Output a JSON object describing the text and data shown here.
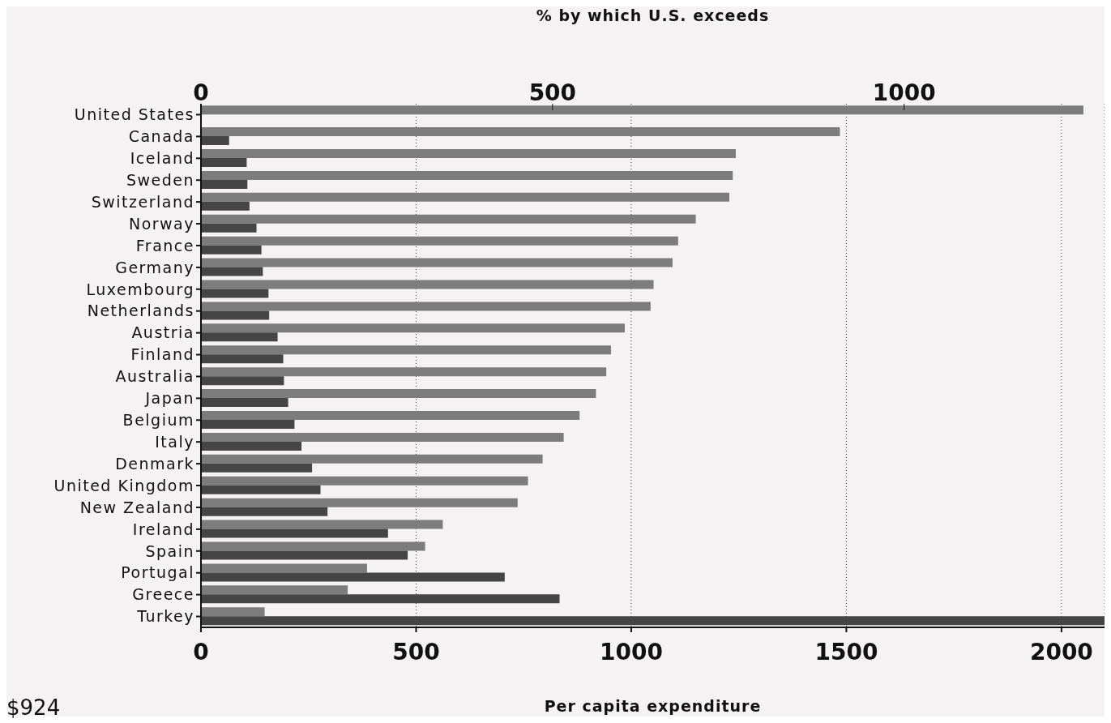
{
  "chart_data": {
    "type": "bar",
    "orientation": "horizontal",
    "xlabel": "Per capita expenditure",
    "x2label": "% by which U.S. exceeds",
    "categories": [
      "United States",
      "Canada",
      "Iceland",
      "Sweden",
      "Switzerland",
      "Norway",
      "France",
      "Germany",
      "Luxembourg",
      "Netherlands",
      "Austria",
      "Finland",
      "Australia",
      "Japan",
      "Belgium",
      "Italy",
      "Denmark",
      "United Kingdom",
      "New Zealand",
      "Ireland",
      "Spain",
      "Portugal",
      "Greece",
      "Turkey"
    ],
    "series": [
      {
        "color": "#7c7c7c",
        "values": [
          2051,
          1485,
          1243,
          1236,
          1228,
          1150,
          1109,
          1096,
          1052,
          1045,
          985,
          953,
          942,
          918,
          880,
          843,
          794,
          760,
          736,
          562,
          521,
          386,
          341,
          148
        ]
      },
      {
        "color": "#454545",
        "axis": "x2",
        "values": [
          null,
          40,
          65,
          66,
          69,
          79,
          86,
          88,
          96,
          97,
          109,
          117,
          118,
          124,
          133,
          143,
          158,
          170,
          180,
          266,
          294,
          432,
          510,
          1285
        ]
      }
    ],
    "xlim": [
      0,
      2100
    ],
    "xticks": [
      0,
      500,
      1000,
      1500,
      2000
    ],
    "x2lim": [
      0,
      1285
    ],
    "x2ticks": [
      0,
      500,
      1000
    ],
    "grid": "x",
    "annotations": [
      "$924"
    ]
  }
}
